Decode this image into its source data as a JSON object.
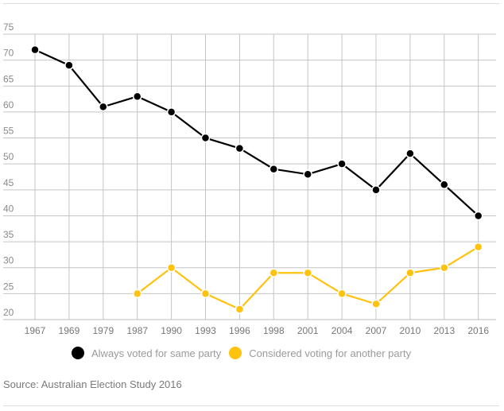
{
  "chart_data": {
    "type": "line",
    "title": "",
    "xlabel": "",
    "ylabel": "",
    "categories": [
      "1967",
      "1969",
      "1979",
      "1987",
      "1990",
      "1993",
      "1996",
      "1998",
      "2001",
      "2004",
      "2007",
      "2010",
      "2013",
      "2016"
    ],
    "y_ticks": [
      "20",
      "25",
      "30",
      "35",
      "40",
      "45",
      "50",
      "55",
      "60",
      "65",
      "70",
      "75"
    ],
    "ylim": [
      20,
      75
    ],
    "grid": true,
    "legend_position": "bottom-center",
    "series": [
      {
        "name": "Always voted for same party",
        "color": "#000000",
        "values": [
          72,
          69,
          61,
          63,
          60,
          55,
          53,
          49,
          48,
          50,
          45,
          52,
          46,
          40
        ]
      },
      {
        "name": "Considered voting for another party",
        "color": "#FFC20E",
        "values": [
          null,
          null,
          null,
          25,
          30,
          25,
          22,
          29,
          29,
          25,
          23,
          29,
          30,
          34
        ]
      }
    ]
  },
  "source": "Source: Australian Election Study 2016"
}
